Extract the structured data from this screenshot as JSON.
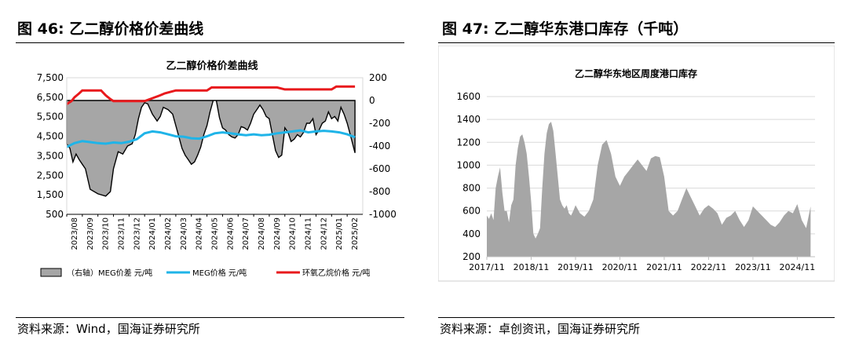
{
  "left": {
    "heading": "图 46:  乙二醇价格价差曲线",
    "source": "资料来源：Wind，国海证券研究所",
    "chart_data": {
      "type": "line",
      "title": "乙二醇价格价差曲线",
      "y_left_ticks": [
        "7,500",
        "6,500",
        "5,500",
        "4,500",
        "3,500",
        "2,500",
        "1,500",
        "500"
      ],
      "y_left_range": [
        500,
        7500
      ],
      "y_right_ticks": [
        "200",
        "0",
        "-200",
        "-400",
        "-600",
        "-800",
        "-1000"
      ],
      "y_right_range": [
        -1000,
        200
      ],
      "x_ticks": [
        "2023/08",
        "2023/09",
        "2023/10",
        "2023/11",
        "2023/12",
        "2024/01",
        "2024/02",
        "2024/03",
        "2024/04",
        "2024/05",
        "2024/06",
        "2024/07",
        "2024/08",
        "2024/09",
        "2024/10",
        "2024/11",
        "2024/12",
        "2025/01",
        "2025/02"
      ],
      "legend": [
        {
          "label": "（右轴）MEG价差  元/吨",
          "kind": "area",
          "color": "#a6a6a6"
        },
        {
          "label": "MEG价格  元/吨",
          "kind": "line",
          "color": "#1fb4e8"
        },
        {
          "label": "环氧乙烷价格  元/吨",
          "kind": "line",
          "color": "#e8191c"
        }
      ],
      "series": [
        {
          "name": "（右轴）MEG价差  元/吨",
          "axis": "right",
          "x": [
            0,
            0.2,
            0.4,
            0.6,
            0.8,
            1.0,
            1.2,
            1.5,
            2.0,
            2.5,
            2.8,
            3.0,
            3.3,
            3.6,
            3.9,
            4.2,
            4.4,
            4.6,
            4.8,
            5.0,
            5.2,
            5.5,
            5.8,
            6.0,
            6.2,
            6.5,
            6.8,
            7.0,
            7.2,
            7.4,
            7.6,
            7.8,
            8.0,
            8.2,
            8.4,
            8.6,
            8.8,
            9.0,
            9.2,
            9.4,
            9.6,
            9.8,
            10.0,
            10.2,
            10.4,
            10.6,
            10.8,
            11.0,
            11.2,
            11.4,
            11.6,
            11.8,
            12.0,
            12.2,
            12.4,
            12.6,
            12.8,
            13.0,
            13.2,
            13.4,
            13.6,
            13.8,
            14.0,
            14.2,
            14.4,
            14.6,
            14.8,
            15.0,
            15.2,
            15.4,
            15.6,
            15.8,
            16.0,
            16.2,
            16.4,
            16.6,
            16.8,
            17.0,
            17.2,
            17.4,
            17.6,
            17.8,
            18.0,
            18.2,
            18.5
          ],
          "values": [
            -380,
            -420,
            -540,
            -470,
            -520,
            -560,
            -600,
            -780,
            -820,
            -840,
            -800,
            -600,
            -450,
            -470,
            -400,
            -380,
            -300,
            -160,
            -60,
            -20,
            -30,
            -120,
            -180,
            -140,
            -60,
            -80,
            -120,
            -220,
            -320,
            -420,
            -480,
            -520,
            -560,
            -540,
            -480,
            -410,
            -300,
            -220,
            -100,
            0,
            0,
            -150,
            -240,
            -260,
            -300,
            -320,
            -330,
            -300,
            -230,
            -240,
            -260,
            -200,
            -120,
            -80,
            -40,
            -80,
            -140,
            -160,
            -300,
            -440,
            -500,
            -480,
            -240,
            -280,
            -360,
            -340,
            -300,
            -320,
            -280,
            -200,
            -200,
            -160,
            -300,
            -260,
            -200,
            -180,
            -100,
            -160,
            -140,
            -180,
            -60,
            -120,
            -200,
            -300,
            -460
          ]
        },
        {
          "name": "MEG价格  元/吨",
          "axis": "left",
          "x": [
            0,
            0.5,
            1.0,
            1.5,
            2.0,
            2.5,
            3.0,
            3.5,
            4.0,
            4.5,
            5.0,
            5.5,
            6.0,
            6.5,
            7.0,
            7.5,
            8.0,
            8.5,
            9.0,
            9.5,
            10.0,
            10.5,
            11.0,
            11.5,
            12.0,
            12.5,
            13.0,
            13.5,
            14.0,
            14.5,
            15.0,
            15.5,
            16.0,
            16.5,
            17.0,
            17.5,
            18.0,
            18.5
          ],
          "values": [
            3950,
            4150,
            4250,
            4200,
            4150,
            4120,
            4180,
            4150,
            4220,
            4350,
            4650,
            4750,
            4700,
            4600,
            4500,
            4480,
            4400,
            4380,
            4500,
            4650,
            4700,
            4650,
            4600,
            4550,
            4600,
            4550,
            4580,
            4650,
            4700,
            4750,
            4800,
            4700,
            4750,
            4780,
            4750,
            4700,
            4600,
            4450
          ]
        },
        {
          "name": "环氧乙烷价格  元/吨",
          "axis": "left",
          "x": [
            0,
            0.3,
            0.5,
            0.8,
            1.0,
            2.2,
            2.5,
            2.8,
            3.0,
            5.0,
            5.5,
            6.0,
            6.3,
            7.0,
            9.0,
            9.3,
            13.5,
            14.0,
            17.0,
            17.3,
            18.5
          ],
          "values": [
            6150,
            6300,
            6500,
            6700,
            6850,
            6850,
            6600,
            6400,
            6300,
            6300,
            6450,
            6600,
            6700,
            6850,
            6850,
            7000,
            7000,
            6900,
            6900,
            7050,
            7050
          ]
        }
      ]
    }
  },
  "right": {
    "heading": "图 47:  乙二醇华东港口库存（千吨）",
    "source": "资料来源：卓创资讯，国海证券研究所",
    "chart_data": {
      "type": "area",
      "title": "乙二醇华东地区周度港口库存",
      "y_ticks": [
        "1600",
        "1400",
        "1200",
        "1000",
        "800",
        "600",
        "400",
        "200"
      ],
      "y_range": [
        200,
        1600
      ],
      "x_ticks": [
        "2017/11",
        "2018/11",
        "2019/11",
        "2020/11",
        "2021/11",
        "2022/11",
        "2023/11",
        "2024/11"
      ],
      "color": "#a6a6a6",
      "x": [
        0,
        0.05,
        0.1,
        0.15,
        0.2,
        0.25,
        0.3,
        0.35,
        0.4,
        0.45,
        0.5,
        0.55,
        0.6,
        0.65,
        0.7,
        0.75,
        0.8,
        0.85,
        0.9,
        0.95,
        1.0,
        1.05,
        1.1,
        1.15,
        1.2,
        1.25,
        1.3,
        1.35,
        1.4,
        1.45,
        1.5,
        1.55,
        1.6,
        1.65,
        1.7,
        1.75,
        1.8,
        1.85,
        1.9,
        1.95,
        2.0,
        2.1,
        2.2,
        2.3,
        2.4,
        2.5,
        2.6,
        2.7,
        2.8,
        2.9,
        3.0,
        3.1,
        3.2,
        3.3,
        3.4,
        3.5,
        3.6,
        3.7,
        3.8,
        3.9,
        4.0,
        4.1,
        4.2,
        4.3,
        4.4,
        4.5,
        4.6,
        4.7,
        4.8,
        4.9,
        5.0,
        5.1,
        5.2,
        5.3,
        5.4,
        5.5,
        5.6,
        5.7,
        5.8,
        5.9,
        6.0,
        6.1,
        6.2,
        6.3,
        6.4,
        6.5,
        6.6,
        6.7,
        6.8,
        6.9,
        7.0,
        7.1,
        7.2,
        7.3
      ],
      "values": [
        560,
        530,
        580,
        520,
        800,
        900,
        980,
        760,
        600,
        600,
        500,
        650,
        700,
        1000,
        1150,
        1250,
        1270,
        1200,
        1100,
        900,
        680,
        400,
        360,
        400,
        450,
        800,
        1100,
        1280,
        1360,
        1380,
        1300,
        1100,
        900,
        700,
        650,
        620,
        650,
        580,
        560,
        600,
        650,
        580,
        550,
        600,
        700,
        1000,
        1180,
        1220,
        1100,
        900,
        820,
        900,
        950,
        1000,
        1050,
        1000,
        950,
        1060,
        1080,
        1070,
        900,
        600,
        560,
        600,
        700,
        800,
        720,
        640,
        560,
        620,
        650,
        620,
        580,
        480,
        540,
        560,
        600,
        520,
        460,
        520,
        640,
        600,
        560,
        520,
        480,
        460,
        500,
        560,
        600,
        580,
        660,
        520,
        450,
        640
      ]
    }
  }
}
